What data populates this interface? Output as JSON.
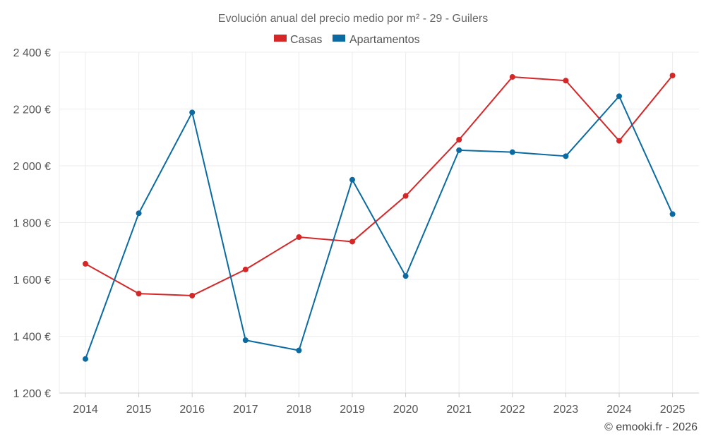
{
  "chart_data": {
    "type": "line",
    "title": "Evolución anual del precio medio por m² - 29 - Guilers",
    "categories": [
      "2014",
      "2015",
      "2016",
      "2017",
      "2018",
      "2019",
      "2020",
      "2021",
      "2022",
      "2023",
      "2024",
      "2025"
    ],
    "series": [
      {
        "name": "Casas",
        "color": "#d62728",
        "values": [
          1655,
          1550,
          1543,
          1635,
          1749,
          1733,
          1894,
          2092,
          2313,
          2300,
          2088,
          2318
        ]
      },
      {
        "name": "Apartamentos",
        "color": "#0a6aa1",
        "values": [
          1320,
          1833,
          2188,
          1386,
          1350,
          1951,
          1612,
          2055,
          2048,
          2034,
          2245,
          1830
        ]
      }
    ],
    "ylim": [
      1200,
      2400
    ],
    "yticks": [
      1200,
      1400,
      1600,
      1800,
      2000,
      2200,
      2400
    ],
    "ytick_labels": [
      "1 200 €",
      "1 400 €",
      "1 600 €",
      "1 800 €",
      "2 000 €",
      "2 200 €",
      "2 400 €"
    ],
    "xlabel": "",
    "ylabel": "",
    "legend_position": "top-center",
    "grid": true,
    "credit": "© emooki.fr - 2026"
  }
}
